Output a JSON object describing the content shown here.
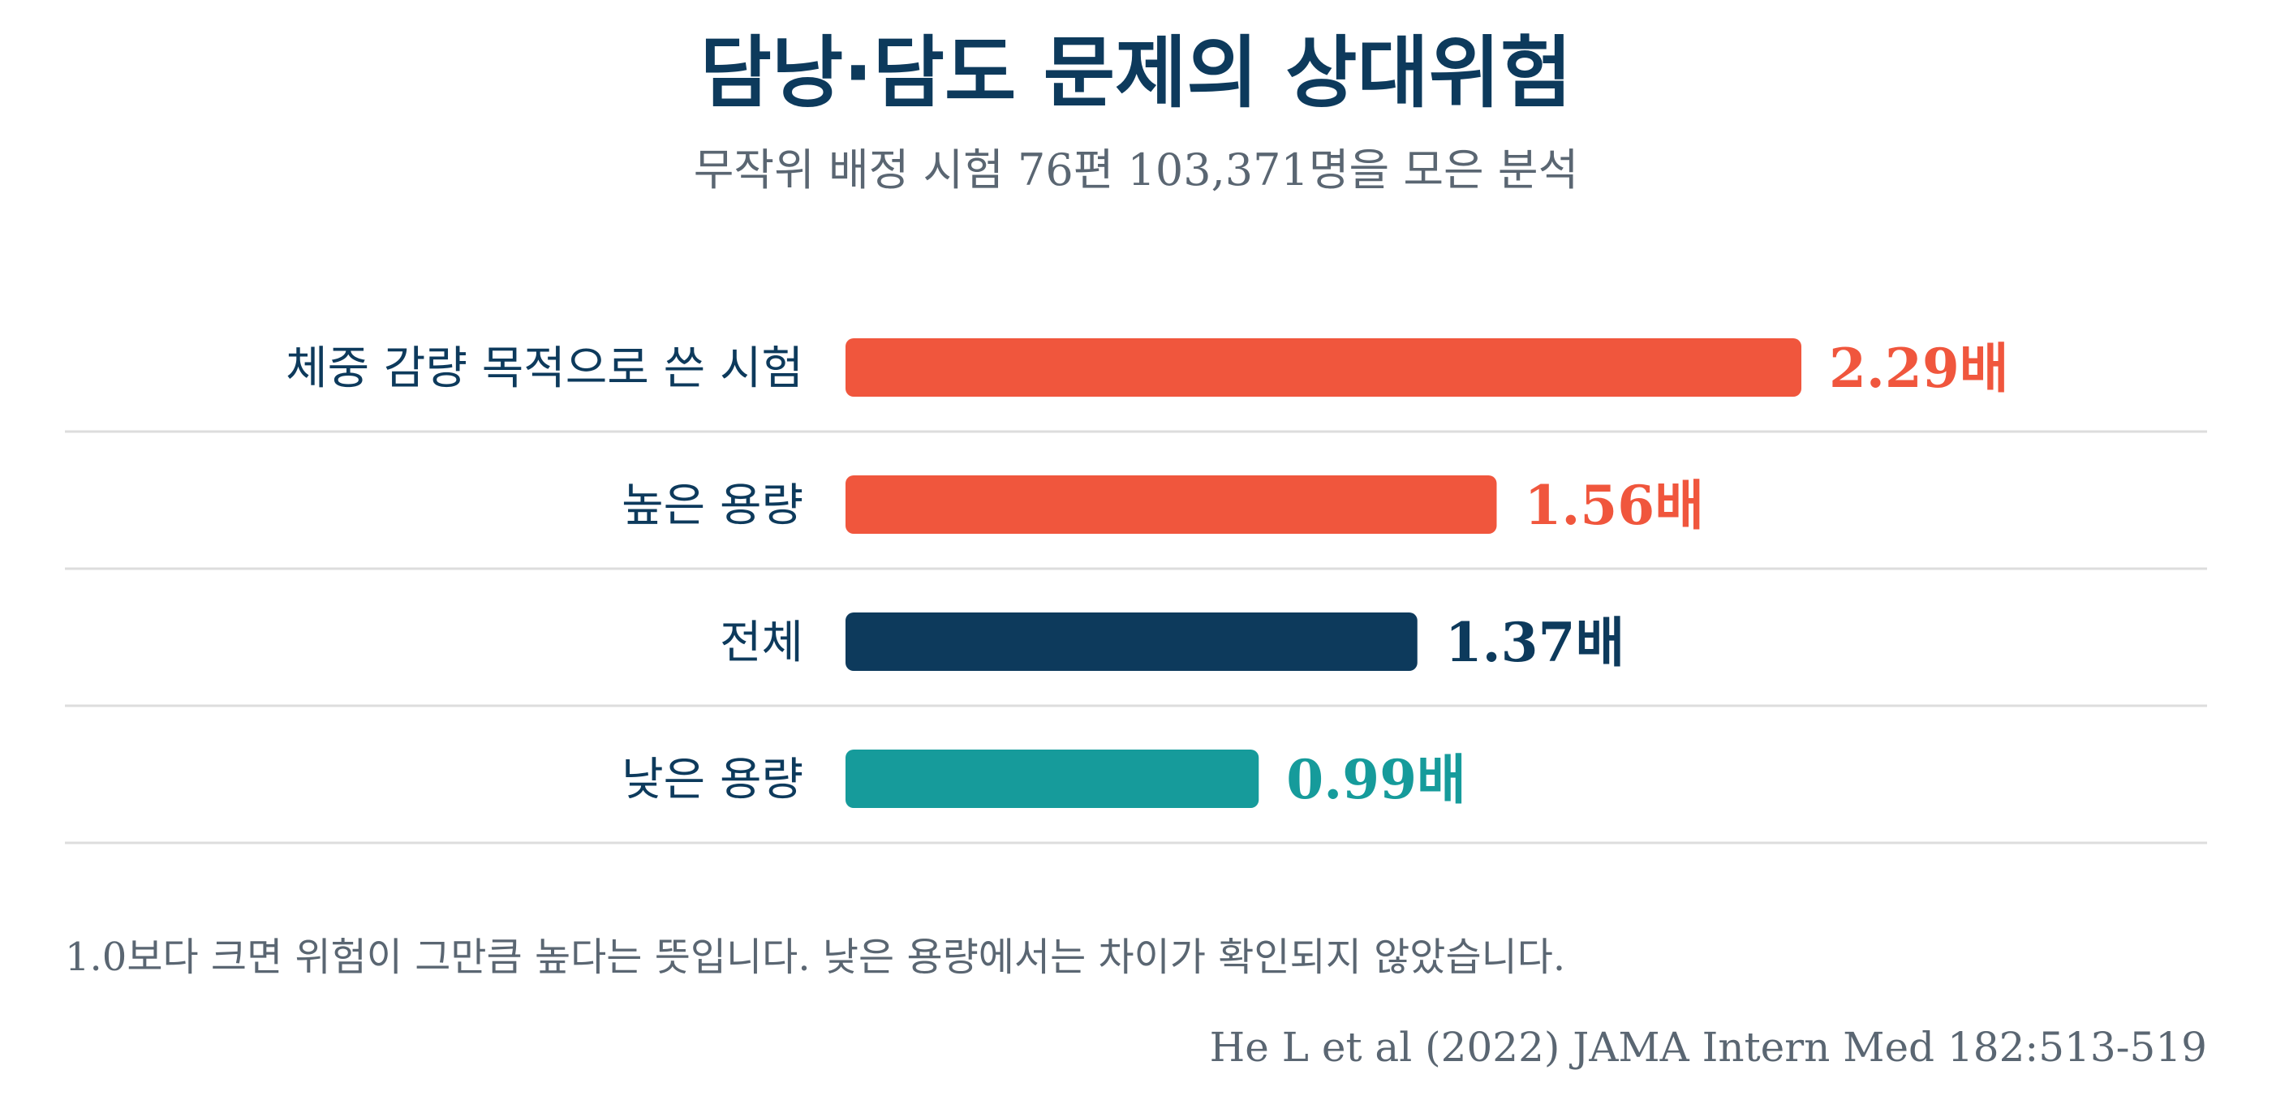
{
  "chart_data": {
    "type": "bar",
    "orientation": "horizontal",
    "title": "담낭·담도 문제의 상대위험",
    "subtitle": "무작위 배정 시험 76편 103,371명을 모은 분석",
    "categories": [
      "체중 감량 목적으로 쓴 시험",
      "높은 용량",
      "전체",
      "낮은 용량"
    ],
    "values": [
      2.29,
      1.56,
      1.37,
      0.99
    ],
    "value_labels": [
      "2.29배",
      "1.56배",
      "1.37배",
      "0.99배"
    ],
    "colors": [
      "#f0563d",
      "#f0563d",
      "#0d3a5c",
      "#169b9b"
    ],
    "xlim": [
      0,
      2.29
    ],
    "grid": false,
    "legend": "none"
  },
  "note": "1.0보다 크면 위험이 그만큼 높다는 뜻입니다. 낮은 용량에서는 차이가 확인되지 않았습니다.",
  "source": "He L et al (2022) JAMA Intern Med 182:513-519",
  "colors": {
    "title": "#0d3a5c",
    "muted": "#5a6672",
    "divider": "#dddddd"
  }
}
